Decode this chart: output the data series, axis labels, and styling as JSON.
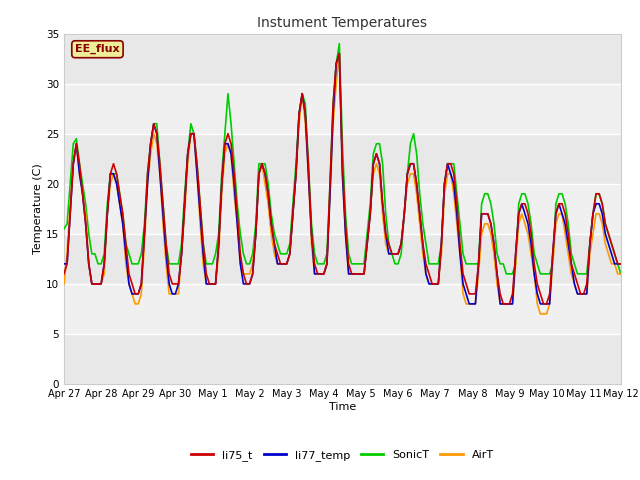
{
  "title": "Instument Temperatures",
  "xlabel": "Time",
  "ylabel": "Temperature (C)",
  "ylim": [
    0,
    35
  ],
  "xlim": [
    0,
    15
  ],
  "x_tick_labels": [
    "Apr 27",
    "Apr 28",
    "Apr 29",
    "Apr 30",
    "May 1",
    "May 2",
    "May 3",
    "May 4",
    "May 5",
    "May 6",
    "May 7",
    "May 8",
    "May 9",
    "May 10",
    "May 11",
    "May 12"
  ],
  "x_tick_positions": [
    0,
    1,
    2,
    3,
    4,
    5,
    6,
    7,
    8,
    9,
    10,
    11,
    12,
    13,
    14,
    15
  ],
  "yticks": [
    0,
    5,
    10,
    15,
    20,
    25,
    30,
    35
  ],
  "line_colors": {
    "li75_t": "#cc0000",
    "li77_temp": "#0000cc",
    "SonicT": "#00cc00",
    "AirT": "#ff9900"
  },
  "annotation_text": "EE_flux",
  "annotation_bg": "#eeee99",
  "annotation_border": "#880000",
  "plot_bg_light": "#e8e8e8",
  "plot_bg_dark": "#d8d8d8",
  "fig_bg": "#ffffff",
  "grid_color": "#ffffff",
  "title_color": "#333333",
  "linewidth": 1.2,
  "data_x": [
    0.0,
    0.083,
    0.167,
    0.25,
    0.333,
    0.417,
    0.5,
    0.583,
    0.667,
    0.75,
    0.833,
    0.917,
    1.0,
    1.083,
    1.167,
    1.25,
    1.333,
    1.417,
    1.5,
    1.583,
    1.667,
    1.75,
    1.833,
    1.917,
    2.0,
    2.083,
    2.167,
    2.25,
    2.333,
    2.417,
    2.5,
    2.583,
    2.667,
    2.75,
    2.833,
    2.917,
    3.0,
    3.083,
    3.167,
    3.25,
    3.333,
    3.417,
    3.5,
    3.583,
    3.667,
    3.75,
    3.833,
    3.917,
    4.0,
    4.083,
    4.167,
    4.25,
    4.333,
    4.417,
    4.5,
    4.583,
    4.667,
    4.75,
    4.833,
    4.917,
    5.0,
    5.083,
    5.167,
    5.25,
    5.333,
    5.417,
    5.5,
    5.583,
    5.667,
    5.75,
    5.833,
    5.917,
    6.0,
    6.083,
    6.167,
    6.25,
    6.333,
    6.417,
    6.5,
    6.583,
    6.667,
    6.75,
    6.833,
    6.917,
    7.0,
    7.083,
    7.167,
    7.25,
    7.333,
    7.417,
    7.5,
    7.583,
    7.667,
    7.75,
    7.833,
    7.917,
    8.0,
    8.083,
    8.167,
    8.25,
    8.333,
    8.417,
    8.5,
    8.583,
    8.667,
    8.75,
    8.833,
    8.917,
    9.0,
    9.083,
    9.167,
    9.25,
    9.333,
    9.417,
    9.5,
    9.583,
    9.667,
    9.75,
    9.833,
    9.917,
    10.0,
    10.083,
    10.167,
    10.25,
    10.333,
    10.417,
    10.5,
    10.583,
    10.667,
    10.75,
    10.833,
    10.917,
    11.0,
    11.083,
    11.167,
    11.25,
    11.333,
    11.417,
    11.5,
    11.583,
    11.667,
    11.75,
    11.833,
    11.917,
    12.0,
    12.083,
    12.167,
    12.25,
    12.333,
    12.417,
    12.5,
    12.583,
    12.667,
    12.75,
    12.833,
    12.917,
    13.0,
    13.083,
    13.167,
    13.25,
    13.333,
    13.417,
    13.5,
    13.583,
    13.667,
    13.75,
    13.833,
    13.917,
    14.0,
    14.083,
    14.167,
    14.25,
    14.333,
    14.417,
    14.5,
    14.583,
    14.667,
    14.75,
    14.833,
    14.917,
    15.0
  ],
  "li75_t": [
    11,
    12,
    17,
    22,
    24,
    22,
    19,
    16,
    12,
    10,
    10,
    10,
    10,
    12,
    17,
    21,
    22,
    21,
    19,
    17,
    14,
    11,
    10,
    9,
    9,
    10,
    15,
    21,
    24,
    26,
    25,
    22,
    18,
    14,
    11,
    10,
    10,
    10,
    13,
    18,
    23,
    25,
    25,
    22,
    18,
    14,
    11,
    10,
    10,
    10,
    14,
    20,
    24,
    25,
    24,
    21,
    17,
    13,
    11,
    10,
    10,
    11,
    15,
    21,
    22,
    21,
    19,
    16,
    14,
    13,
    12,
    12,
    12,
    13,
    17,
    21,
    27,
    29,
    27,
    22,
    15,
    12,
    11,
    11,
    11,
    12,
    20,
    28,
    32,
    33,
    22,
    16,
    12,
    11,
    11,
    11,
    11,
    11,
    14,
    17,
    22,
    23,
    22,
    18,
    15,
    14,
    13,
    13,
    13,
    14,
    17,
    21,
    22,
    22,
    20,
    17,
    14,
    12,
    11,
    10,
    10,
    10,
    14,
    20,
    22,
    22,
    21,
    18,
    14,
    11,
    10,
    9,
    9,
    9,
    12,
    17,
    17,
    17,
    16,
    14,
    11,
    9,
    8,
    8,
    8,
    9,
    13,
    17,
    18,
    18,
    17,
    15,
    12,
    10,
    9,
    8,
    8,
    9,
    13,
    17,
    18,
    18,
    17,
    15,
    12,
    11,
    10,
    9,
    9,
    10,
    14,
    17,
    19,
    19,
    18,
    16,
    15,
    14,
    13,
    12,
    12
  ],
  "li77_temp": [
    12,
    12,
    17,
    22,
    24,
    21,
    19,
    16,
    12,
    10,
    10,
    10,
    10,
    12,
    17,
    21,
    21,
    20,
    18,
    16,
    13,
    10,
    9,
    9,
    9,
    10,
    15,
    20,
    24,
    26,
    25,
    21,
    17,
    13,
    10,
    9,
    9,
    10,
    13,
    18,
    23,
    25,
    25,
    21,
    17,
    13,
    10,
    10,
    10,
    10,
    14,
    20,
    24,
    24,
    23,
    20,
    16,
    12,
    10,
    10,
    10,
    11,
    15,
    21,
    22,
    21,
    19,
    16,
    14,
    12,
    12,
    12,
    12,
    13,
    17,
    21,
    27,
    29,
    27,
    21,
    15,
    11,
    11,
    11,
    11,
    12,
    19,
    27,
    32,
    33,
    21,
    15,
    11,
    11,
    11,
    11,
    11,
    11,
    14,
    17,
    22,
    23,
    22,
    18,
    15,
    13,
    13,
    13,
    13,
    14,
    17,
    21,
    22,
    22,
    20,
    17,
    14,
    11,
    10,
    10,
    10,
    10,
    14,
    20,
    22,
    21,
    20,
    17,
    13,
    10,
    9,
    8,
    8,
    8,
    12,
    17,
    17,
    17,
    16,
    14,
    11,
    8,
    8,
    8,
    8,
    8,
    13,
    17,
    18,
    17,
    16,
    14,
    11,
    9,
    8,
    8,
    8,
    8,
    13,
    17,
    18,
    17,
    16,
    14,
    12,
    10,
    9,
    9,
    9,
    9,
    14,
    17,
    18,
    18,
    17,
    15,
    14,
    13,
    12,
    12,
    12
  ],
  "SonicT": [
    15.5,
    16,
    20,
    24,
    24.5,
    22,
    20,
    18,
    15,
    13,
    13,
    12,
    12,
    13,
    18,
    21,
    21,
    21,
    19,
    17,
    14,
    13,
    12,
    12,
    12,
    13,
    16,
    21,
    24,
    26,
    26,
    22,
    18,
    14,
    12,
    12,
    12,
    12,
    14,
    19,
    23,
    26,
    25,
    22,
    18,
    14,
    12,
    12,
    12,
    13,
    15,
    21,
    25,
    29,
    26,
    22,
    18,
    15,
    13,
    12,
    12,
    13,
    16,
    22,
    22,
    22,
    20,
    17,
    15,
    14,
    13,
    13,
    13,
    14,
    18,
    22,
    27,
    29,
    28,
    22,
    16,
    13,
    12,
    12,
    12,
    13,
    20,
    28,
    32,
    34,
    24,
    17,
    13,
    12,
    12,
    12,
    12,
    12,
    15,
    18,
    23,
    24,
    24,
    22,
    17,
    14,
    13,
    12,
    12,
    13,
    17,
    21,
    24,
    25,
    23,
    19,
    16,
    14,
    12,
    12,
    12,
    12,
    14,
    20,
    22,
    22,
    22,
    19,
    16,
    13,
    12,
    12,
    12,
    12,
    12,
    18,
    19,
    19,
    18,
    16,
    13,
    12,
    12,
    11,
    11,
    11,
    12,
    18,
    19,
    19,
    18,
    16,
    13,
    12,
    11,
    11,
    11,
    11,
    12,
    18,
    19,
    19,
    18,
    16,
    13,
    12,
    11,
    11,
    11,
    11,
    14,
    17,
    19,
    19,
    18,
    16,
    15,
    14,
    13,
    12,
    11
  ],
  "AirT": [
    10,
    13,
    18,
    22,
    24,
    21,
    19,
    17,
    12,
    10,
    10,
    10,
    10,
    11,
    17,
    20,
    21,
    20,
    18,
    16,
    12,
    10,
    9,
    8,
    8,
    9,
    14,
    20,
    23,
    25,
    24,
    21,
    16,
    12,
    9,
    9,
    9,
    9,
    13,
    17,
    22,
    25,
    25,
    21,
    16,
    12,
    10,
    10,
    10,
    10,
    13,
    19,
    23,
    24,
    23,
    19,
    16,
    12,
    11,
    11,
    11,
    12,
    15,
    21,
    22,
    20,
    18,
    15,
    13,
    12,
    12,
    12,
    12,
    13,
    17,
    21,
    26,
    29,
    26,
    21,
    14,
    11,
    11,
    11,
    11,
    12,
    19,
    26,
    30,
    33,
    21,
    15,
    11,
    11,
    11,
    11,
    11,
    11,
    14,
    17,
    21,
    22,
    21,
    17,
    14,
    13,
    13,
    13,
    13,
    14,
    17,
    20,
    21,
    21,
    19,
    16,
    13,
    11,
    10,
    10,
    10,
    10,
    13,
    19,
    21,
    21,
    19,
    16,
    13,
    9,
    8,
    8,
    8,
    8,
    11,
    15,
    16,
    16,
    15,
    13,
    10,
    8,
    8,
    8,
    8,
    8,
    12,
    16,
    17,
    16,
    15,
    13,
    11,
    8,
    7,
    7,
    7,
    8,
    12,
    16,
    17,
    17,
    15,
    13,
    11,
    10,
    9,
    9,
    9,
    9,
    13,
    15,
    17,
    17,
    16,
    14,
    13,
    12,
    12,
    11,
    11
  ]
}
